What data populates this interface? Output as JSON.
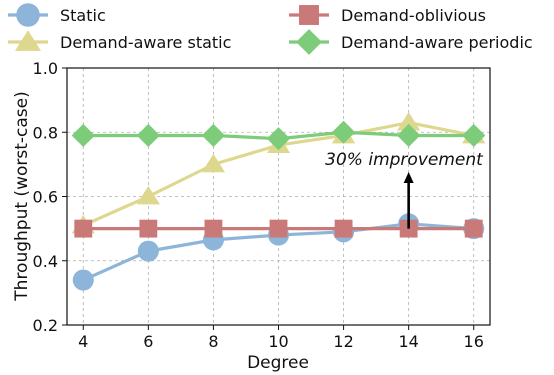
{
  "chart_data": {
    "type": "line",
    "xlabel": "Degree",
    "ylabel": "Throughput (worst-case)",
    "x": [
      4,
      6,
      8,
      10,
      12,
      14,
      16
    ],
    "xlim": [
      3.5,
      16.5
    ],
    "ylim": [
      0.2,
      1.0
    ],
    "x_ticks": [
      "4",
      "6",
      "8",
      "10",
      "12",
      "14",
      "16"
    ],
    "y_ticks": [
      "0.2",
      "0.4",
      "0.6",
      "0.8",
      "1.0"
    ],
    "grid": true,
    "legend_position": "top",
    "series": [
      {
        "name": "Static",
        "marker": "circle",
        "color": "#8db5da",
        "values": [
          0.34,
          0.43,
          0.465,
          0.48,
          0.49,
          0.515,
          0.5
        ]
      },
      {
        "name": "Demand-oblivious",
        "marker": "square",
        "color": "#c97a78",
        "values": [
          0.5,
          0.5,
          0.5,
          0.5,
          0.5,
          0.5,
          0.5
        ]
      },
      {
        "name": "Demand-aware static",
        "marker": "triangle",
        "color": "#ddd88e",
        "values": [
          0.51,
          0.6,
          0.7,
          0.76,
          0.79,
          0.83,
          0.79
        ]
      },
      {
        "name": "Demand-aware periodic",
        "marker": "diamond",
        "color": "#7ccc7a",
        "values": [
          0.79,
          0.79,
          0.79,
          0.78,
          0.8,
          0.79,
          0.79
        ]
      }
    ],
    "annotations": [
      {
        "text": "30% improvement",
        "arrow_x": 14,
        "arrow_from": 0.5,
        "arrow_to": 0.67
      }
    ]
  }
}
